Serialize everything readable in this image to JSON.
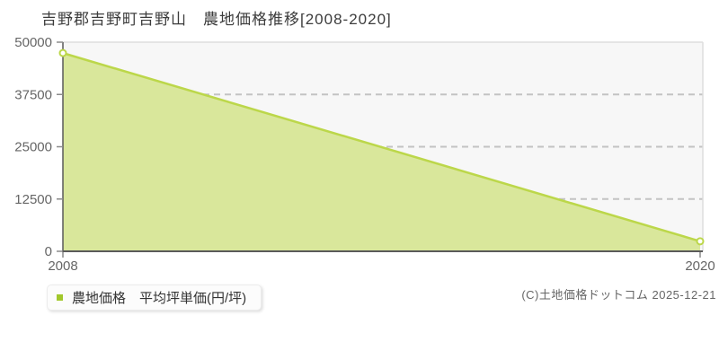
{
  "header": {
    "title": "吉野郡吉野町吉野山　農地価格推移[2008-2020]"
  },
  "legend": {
    "label": "農地価格　平均坪単価(円/坪)"
  },
  "footer": {
    "credit": "(C)土地価格ドットコム 2025-12-21"
  },
  "colors": {
    "accent_line": "#bcd74a",
    "area_fill": "#d9e79b",
    "legend_marker": "#a2c82c",
    "marker_fill": "#ffffff",
    "grid": "#c3c3c3",
    "axis": "#5a5a5a",
    "frame": "#dddddd",
    "plot_bg": "#f7f7f7",
    "tick": "#8a8a8a",
    "label_gray": "#666666",
    "title_color": "#3c3c3c"
  },
  "chart_data": {
    "type": "area",
    "title": "吉野郡吉野町吉野山　農地価格推移[2008-2020]",
    "x": [
      2008,
      2020
    ],
    "series": [
      {
        "name": "農地価格 平均坪単価(円/坪)",
        "values": [
          47400,
          2400
        ]
      }
    ],
    "xlabel": "",
    "ylabel": "",
    "ylim": [
      0,
      50000
    ],
    "yticks": [
      0,
      12500,
      25000,
      37500,
      50000
    ],
    "ytick_labels": [
      "0",
      "12500",
      "25000",
      "37500",
      "50000"
    ],
    "xticks": [
      2008,
      2020
    ],
    "xtick_labels": [
      "2008",
      "2020"
    ],
    "grid": "horizontal-dashed",
    "legend_position": "bottom-left",
    "marker": "open-circle"
  }
}
